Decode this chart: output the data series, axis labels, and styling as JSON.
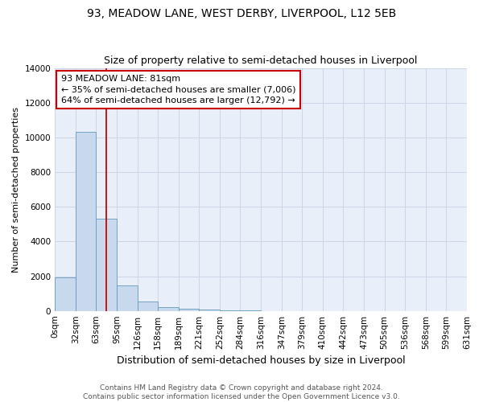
{
  "title": "93, MEADOW LANE, WEST DERBY, LIVERPOOL, L12 5EB",
  "subtitle": "Size of property relative to semi-detached houses in Liverpool",
  "xlabel": "Distribution of semi-detached houses by size in Liverpool",
  "ylabel": "Number of semi-detached properties",
  "footer_line1": "Contains HM Land Registry data © Crown copyright and database right 2024.",
  "footer_line2": "Contains public sector information licensed under the Open Government Licence v3.0.",
  "property_label": "93 MEADOW LANE: 81sqm",
  "annotation_left": "← 35% of semi-detached houses are smaller (7,006)",
  "annotation_right": "64% of semi-detached houses are larger (12,792) →",
  "property_bin_index": 2.5,
  "bin_labels": [
    "0sqm",
    "32sqm",
    "63sqm",
    "95sqm",
    "126sqm",
    "158sqm",
    "189sqm",
    "221sqm",
    "252sqm",
    "284sqm",
    "316sqm",
    "347sqm",
    "379sqm",
    "410sqm",
    "442sqm",
    "473sqm",
    "505sqm",
    "536sqm",
    "568sqm",
    "599sqm",
    "631sqm"
  ],
  "bar_counts": [
    1950,
    10300,
    5300,
    1450,
    550,
    200,
    130,
    70,
    50,
    40,
    0,
    0,
    0,
    0,
    0,
    0,
    0,
    0,
    0,
    0
  ],
  "bar_color": "#c8d9ed",
  "bar_edge_color": "#6699bb",
  "grid_color": "#ccd6e6",
  "background_color": "#e8eff8",
  "annotation_box_color": "#cc0000",
  "property_line_color": "#cc0000",
  "ylim": [
    0,
    14000
  ],
  "yticks": [
    0,
    2000,
    4000,
    6000,
    8000,
    10000,
    12000,
    14000
  ],
  "n_bins": 20,
  "title_fontsize": 10,
  "subtitle_fontsize": 9,
  "xlabel_fontsize": 9,
  "ylabel_fontsize": 8,
  "tick_fontsize": 7.5,
  "annotation_fontsize": 8,
  "footer_fontsize": 6.5
}
